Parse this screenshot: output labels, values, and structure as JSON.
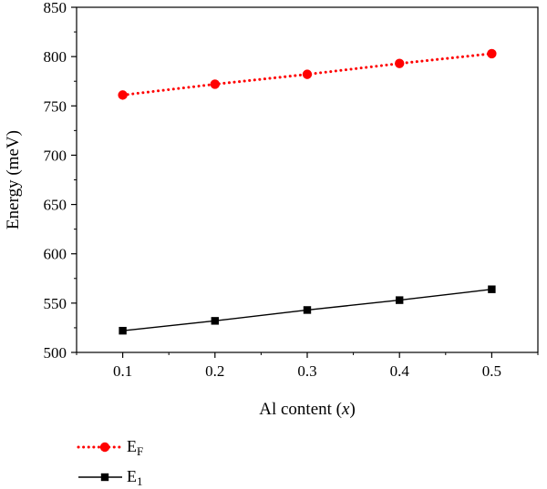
{
  "chart_data": {
    "type": "line",
    "xlabel": "Al content (",
    "xlabel_var": "x",
    "xlabel_close": ")",
    "ylabel": "Energy (meV)",
    "xlim": [
      0.05,
      0.55
    ],
    "ylim": [
      500,
      850
    ],
    "x_ticks": [
      "0.1",
      "0.2",
      "0.3",
      "0.4",
      "0.5"
    ],
    "y_ticks": [
      "500",
      "550",
      "600",
      "650",
      "700",
      "750",
      "800",
      "850"
    ],
    "x": [
      0.1,
      0.2,
      0.3,
      0.4,
      0.5
    ],
    "grid": false,
    "legend_position": "bottom-left",
    "series": [
      {
        "name_main": "E",
        "name_sub": "F",
        "values": [
          761,
          772,
          782,
          793,
          803
        ],
        "color": "#ff0000",
        "marker": "circle",
        "line_style": "dotted"
      },
      {
        "name_main": "E",
        "name_sub": "1",
        "values": [
          522,
          532,
          543,
          553,
          564
        ],
        "color": "#000000",
        "marker": "square",
        "line_style": "solid"
      }
    ]
  }
}
